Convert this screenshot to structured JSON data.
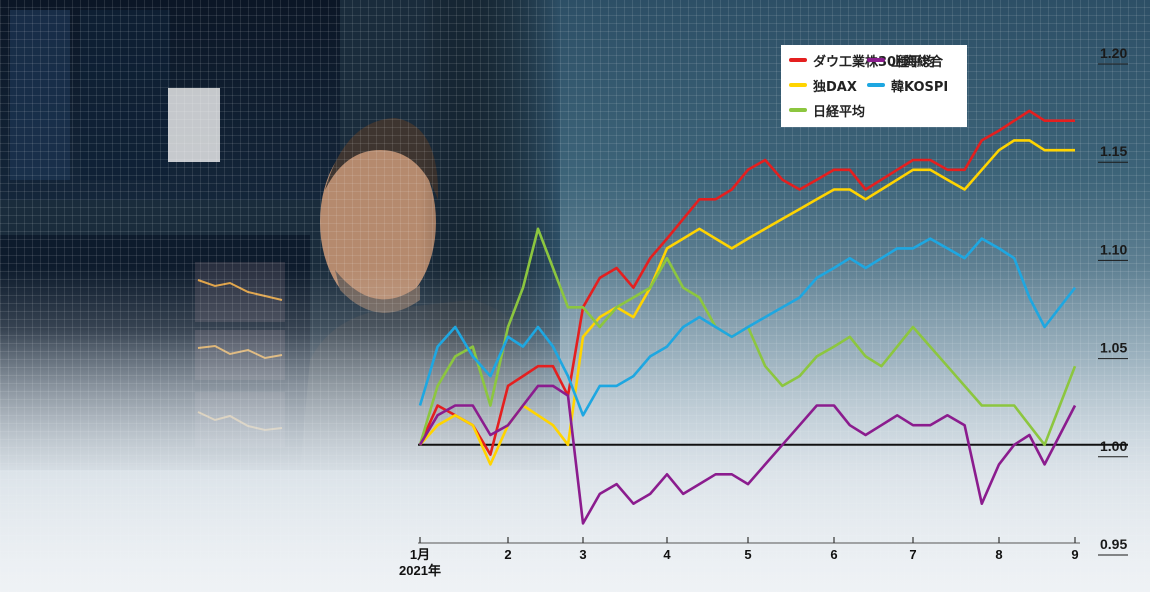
{
  "chart_data": {
    "type": "line",
    "x_ticks": [
      "1月",
      "2",
      "3",
      "4",
      "5",
      "6",
      "7",
      "8",
      "9"
    ],
    "x_tick_sublabel": "2021年",
    "y_ticks": [
      "1.20",
      "1.15",
      "1.10",
      "1.05",
      "1.00",
      "0.95"
    ],
    "ylim": [
      0.95,
      1.2
    ],
    "baseline": 1.0,
    "legend_position": "top-right",
    "series": [
      {
        "name": "ダウ工業株30種平均",
        "color": "#e41f1f",
        "x": [
          1.0,
          1.2,
          1.4,
          1.6,
          1.8,
          2.0,
          2.2,
          2.4,
          2.6,
          2.8,
          3.0,
          3.2,
          3.4,
          3.6,
          3.8,
          4.0,
          4.2,
          4.4,
          4.6,
          4.8,
          5.0,
          5.2,
          5.4,
          5.6,
          5.8,
          6.0,
          6.2,
          6.4,
          6.6,
          6.8,
          7.0,
          7.2,
          7.4,
          7.6,
          7.8,
          8.0,
          8.2,
          8.4,
          8.6,
          8.8,
          9.0
        ],
        "y": [
          1.0,
          1.02,
          1.015,
          1.01,
          0.995,
          1.03,
          1.035,
          1.04,
          1.04,
          1.025,
          1.07,
          1.085,
          1.09,
          1.08,
          1.095,
          1.105,
          1.115,
          1.125,
          1.125,
          1.13,
          1.14,
          1.145,
          1.135,
          1.13,
          1.135,
          1.14,
          1.14,
          1.13,
          1.135,
          1.14,
          1.145,
          1.145,
          1.14,
          1.14,
          1.155,
          1.16,
          1.165,
          1.17,
          1.165,
          1.165,
          1.165
        ]
      },
      {
        "name": "独DAX",
        "color": "#ffd400",
        "x": [
          1.0,
          1.2,
          1.4,
          1.6,
          1.8,
          2.0,
          2.2,
          2.4,
          2.6,
          2.8,
          3.0,
          3.2,
          3.4,
          3.6,
          3.8,
          4.0,
          4.2,
          4.4,
          4.6,
          4.8,
          5.0,
          5.2,
          5.4,
          5.6,
          5.8,
          6.0,
          6.2,
          6.4,
          6.6,
          6.8,
          7.0,
          7.2,
          7.4,
          7.6,
          7.8,
          8.0,
          8.2,
          8.4,
          8.6,
          8.8,
          9.0
        ],
        "y": [
          1.0,
          1.01,
          1.015,
          1.01,
          0.99,
          1.01,
          1.02,
          1.015,
          1.01,
          1.0,
          1.055,
          1.065,
          1.07,
          1.065,
          1.08,
          1.1,
          1.105,
          1.11,
          1.105,
          1.1,
          1.105,
          1.11,
          1.115,
          1.12,
          1.125,
          1.13,
          1.13,
          1.125,
          1.13,
          1.135,
          1.14,
          1.14,
          1.135,
          1.13,
          1.14,
          1.15,
          1.155,
          1.155,
          1.15,
          1.15,
          1.15
        ]
      },
      {
        "name": "日経平均",
        "color": "#8cc63f",
        "x": [
          1.0,
          1.2,
          1.4,
          1.6,
          1.8,
          2.0,
          2.2,
          2.4,
          2.6,
          2.8,
          3.0,
          3.2,
          3.4,
          3.6,
          3.8,
          4.0,
          4.2,
          4.4,
          4.6,
          4.8,
          5.0,
          5.2,
          5.4,
          5.6,
          5.8,
          6.0,
          6.2,
          6.4,
          6.6,
          6.8,
          7.0,
          7.2,
          7.4,
          7.6,
          7.8,
          8.0,
          8.2,
          8.4,
          8.6,
          8.8,
          9.0
        ],
        "y": [
          1.0,
          1.03,
          1.045,
          1.05,
          1.02,
          1.06,
          1.08,
          1.11,
          1.09,
          1.07,
          1.07,
          1.06,
          1.07,
          1.075,
          1.08,
          1.095,
          1.08,
          1.075,
          1.06,
          1.055,
          1.06,
          1.04,
          1.03,
          1.035,
          1.045,
          1.05,
          1.055,
          1.045,
          1.04,
          1.05,
          1.06,
          1.05,
          1.04,
          1.03,
          1.02,
          1.02,
          1.02,
          1.01,
          1.0,
          1.02,
          1.04
        ]
      },
      {
        "name": "上海総合",
        "color": "#8b1c8e",
        "x": [
          1.0,
          1.2,
          1.4,
          1.6,
          1.8,
          2.0,
          2.2,
          2.4,
          2.6,
          2.8,
          3.0,
          3.2,
          3.4,
          3.6,
          3.8,
          4.0,
          4.2,
          4.4,
          4.6,
          4.8,
          5.0,
          5.2,
          5.4,
          5.6,
          5.8,
          6.0,
          6.2,
          6.4,
          6.6,
          6.8,
          7.0,
          7.2,
          7.4,
          7.6,
          7.8,
          8.0,
          8.2,
          8.4,
          8.6,
          8.8,
          9.0
        ],
        "y": [
          1.0,
          1.015,
          1.02,
          1.02,
          1.005,
          1.01,
          1.02,
          1.03,
          1.03,
          1.025,
          0.96,
          0.975,
          0.98,
          0.97,
          0.975,
          0.985,
          0.975,
          0.98,
          0.985,
          0.985,
          0.98,
          0.99,
          1.0,
          1.01,
          1.02,
          1.02,
          1.01,
          1.005,
          1.01,
          1.015,
          1.01,
          1.01,
          1.015,
          1.01,
          0.97,
          0.99,
          1.0,
          1.005,
          0.99,
          1.005,
          1.02
        ]
      },
      {
        "name": "韓KOSPI",
        "color": "#1ea7e1",
        "x": [
          1.0,
          1.2,
          1.4,
          1.6,
          1.8,
          2.0,
          2.2,
          2.4,
          2.6,
          2.8,
          3.0,
          3.2,
          3.4,
          3.6,
          3.8,
          4.0,
          4.2,
          4.4,
          4.6,
          4.8,
          5.0,
          5.2,
          5.4,
          5.6,
          5.8,
          6.0,
          6.2,
          6.4,
          6.6,
          6.8,
          7.0,
          7.2,
          7.4,
          7.6,
          7.8,
          8.0,
          8.2,
          8.4,
          8.6,
          8.8,
          9.0
        ],
        "y": [
          1.02,
          1.05,
          1.06,
          1.045,
          1.035,
          1.055,
          1.05,
          1.06,
          1.05,
          1.035,
          1.015,
          1.03,
          1.03,
          1.035,
          1.045,
          1.05,
          1.06,
          1.065,
          1.06,
          1.055,
          1.06,
          1.065,
          1.07,
          1.075,
          1.085,
          1.09,
          1.095,
          1.09,
          1.095,
          1.1,
          1.1,
          1.105,
          1.1,
          1.095,
          1.105,
          1.1,
          1.095,
          1.075,
          1.06,
          1.07,
          1.08
        ]
      }
    ]
  }
}
